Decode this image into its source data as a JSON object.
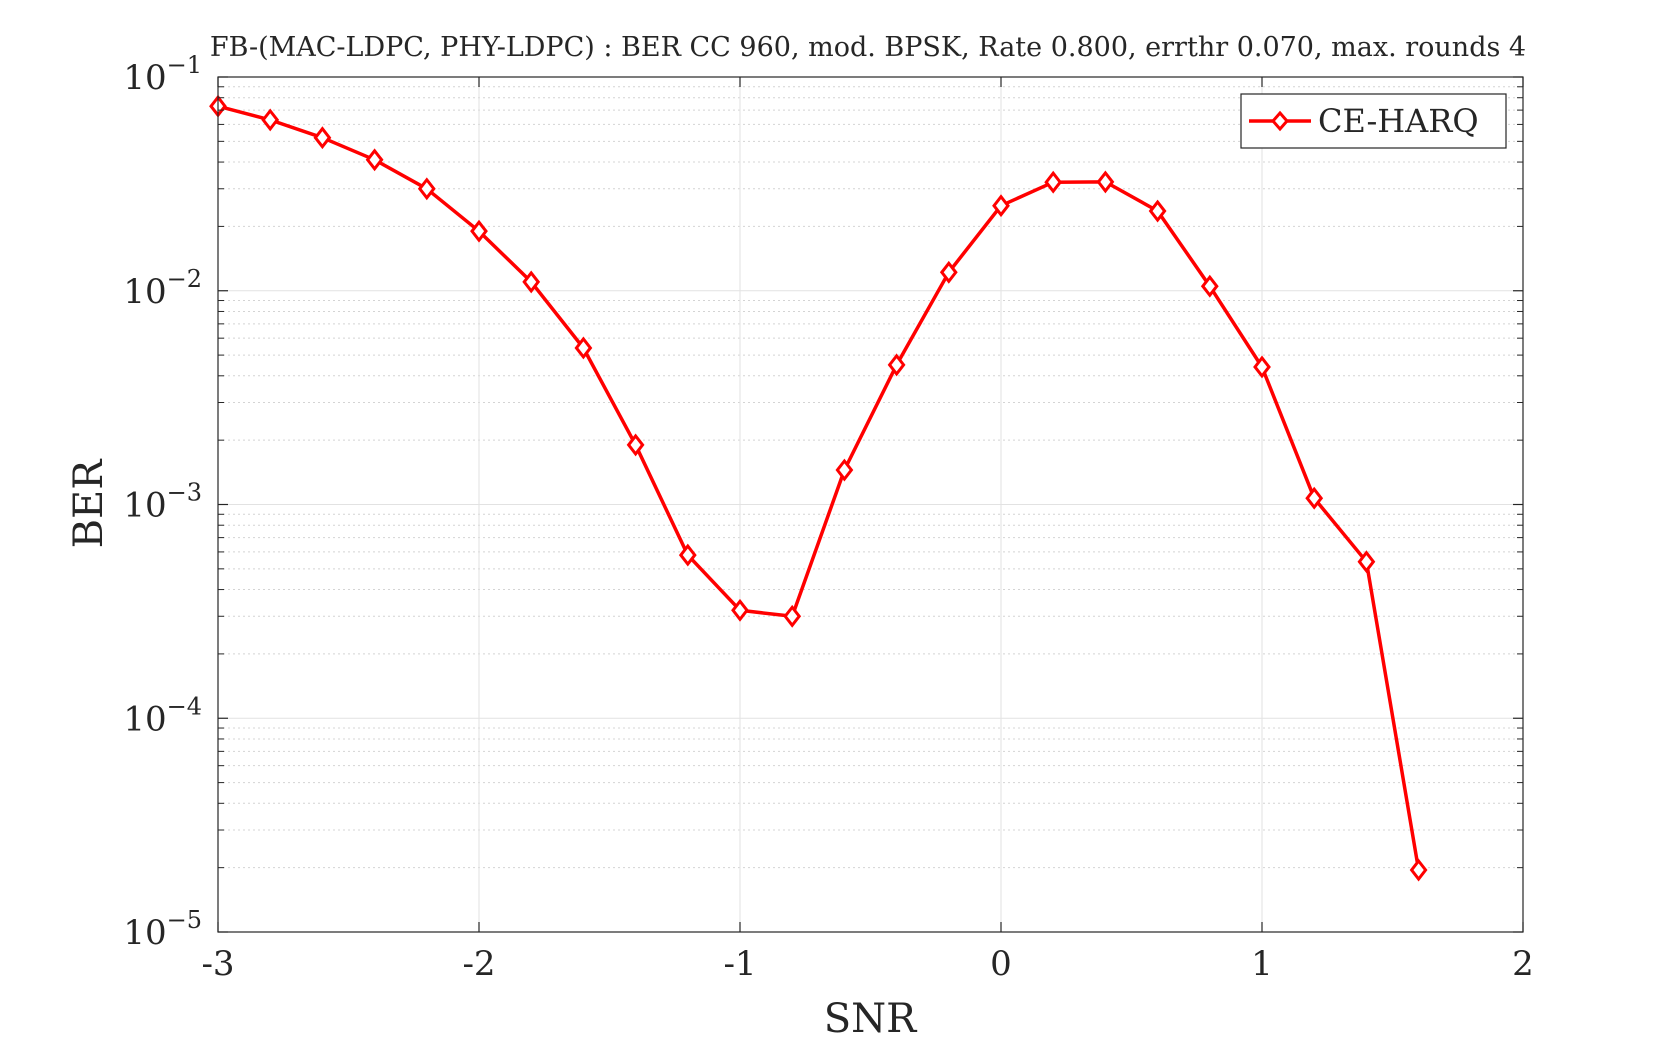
{
  "chart_data": {
    "type": "line",
    "title": "FB-(MAC-LDPC, PHY-LDPC) : BER CC 960, mod. BPSK, Rate 0.800, errthr 0.070, max. rounds 4",
    "xlabel": "SNR",
    "ylabel": "BER",
    "xlim": [
      -3,
      2
    ],
    "ylim": [
      1e-05,
      0.1
    ],
    "yscale": "log",
    "grid": true,
    "legend_position": "top-right",
    "x_ticks": [
      {
        "value": -3,
        "label": "-3"
      },
      {
        "value": -2,
        "label": "-2"
      },
      {
        "value": -1,
        "label": "-1"
      },
      {
        "value": 0,
        "label": "0"
      },
      {
        "value": 1,
        "label": "1"
      },
      {
        "value": 2,
        "label": "2"
      }
    ],
    "y_ticks": [
      {
        "exp": -1,
        "base": "10",
        "sup": "−1"
      },
      {
        "exp": -2,
        "base": "10",
        "sup": "−2"
      },
      {
        "exp": -3,
        "base": "10",
        "sup": "−3"
      },
      {
        "exp": -4,
        "base": "10",
        "sup": "−4"
      },
      {
        "exp": -5,
        "base": "10",
        "sup": "−5"
      }
    ],
    "series": [
      {
        "name": "CE-HARQ",
        "color": "#ff0000",
        "marker": "diamond",
        "x": [
          -3.0,
          -2.8,
          -2.6,
          -2.4,
          -2.2,
          -2.0,
          -1.8,
          -1.6,
          -1.4,
          -1.2,
          -1.0,
          -0.8,
          -0.6,
          -0.4,
          -0.2,
          0.0,
          0.2,
          0.4,
          0.6,
          0.8,
          1.0,
          1.2,
          1.4,
          1.6
        ],
        "y": [
          0.073,
          0.063,
          0.052,
          0.041,
          0.03,
          0.019,
          0.011,
          0.0054,
          0.0019,
          0.00058,
          0.00032,
          0.0003,
          0.00145,
          0.0045,
          0.0122,
          0.025,
          0.0322,
          0.0323,
          0.0236,
          0.0105,
          0.0044,
          0.00107,
          0.00054,
          1.95e-05
        ]
      }
    ]
  }
}
